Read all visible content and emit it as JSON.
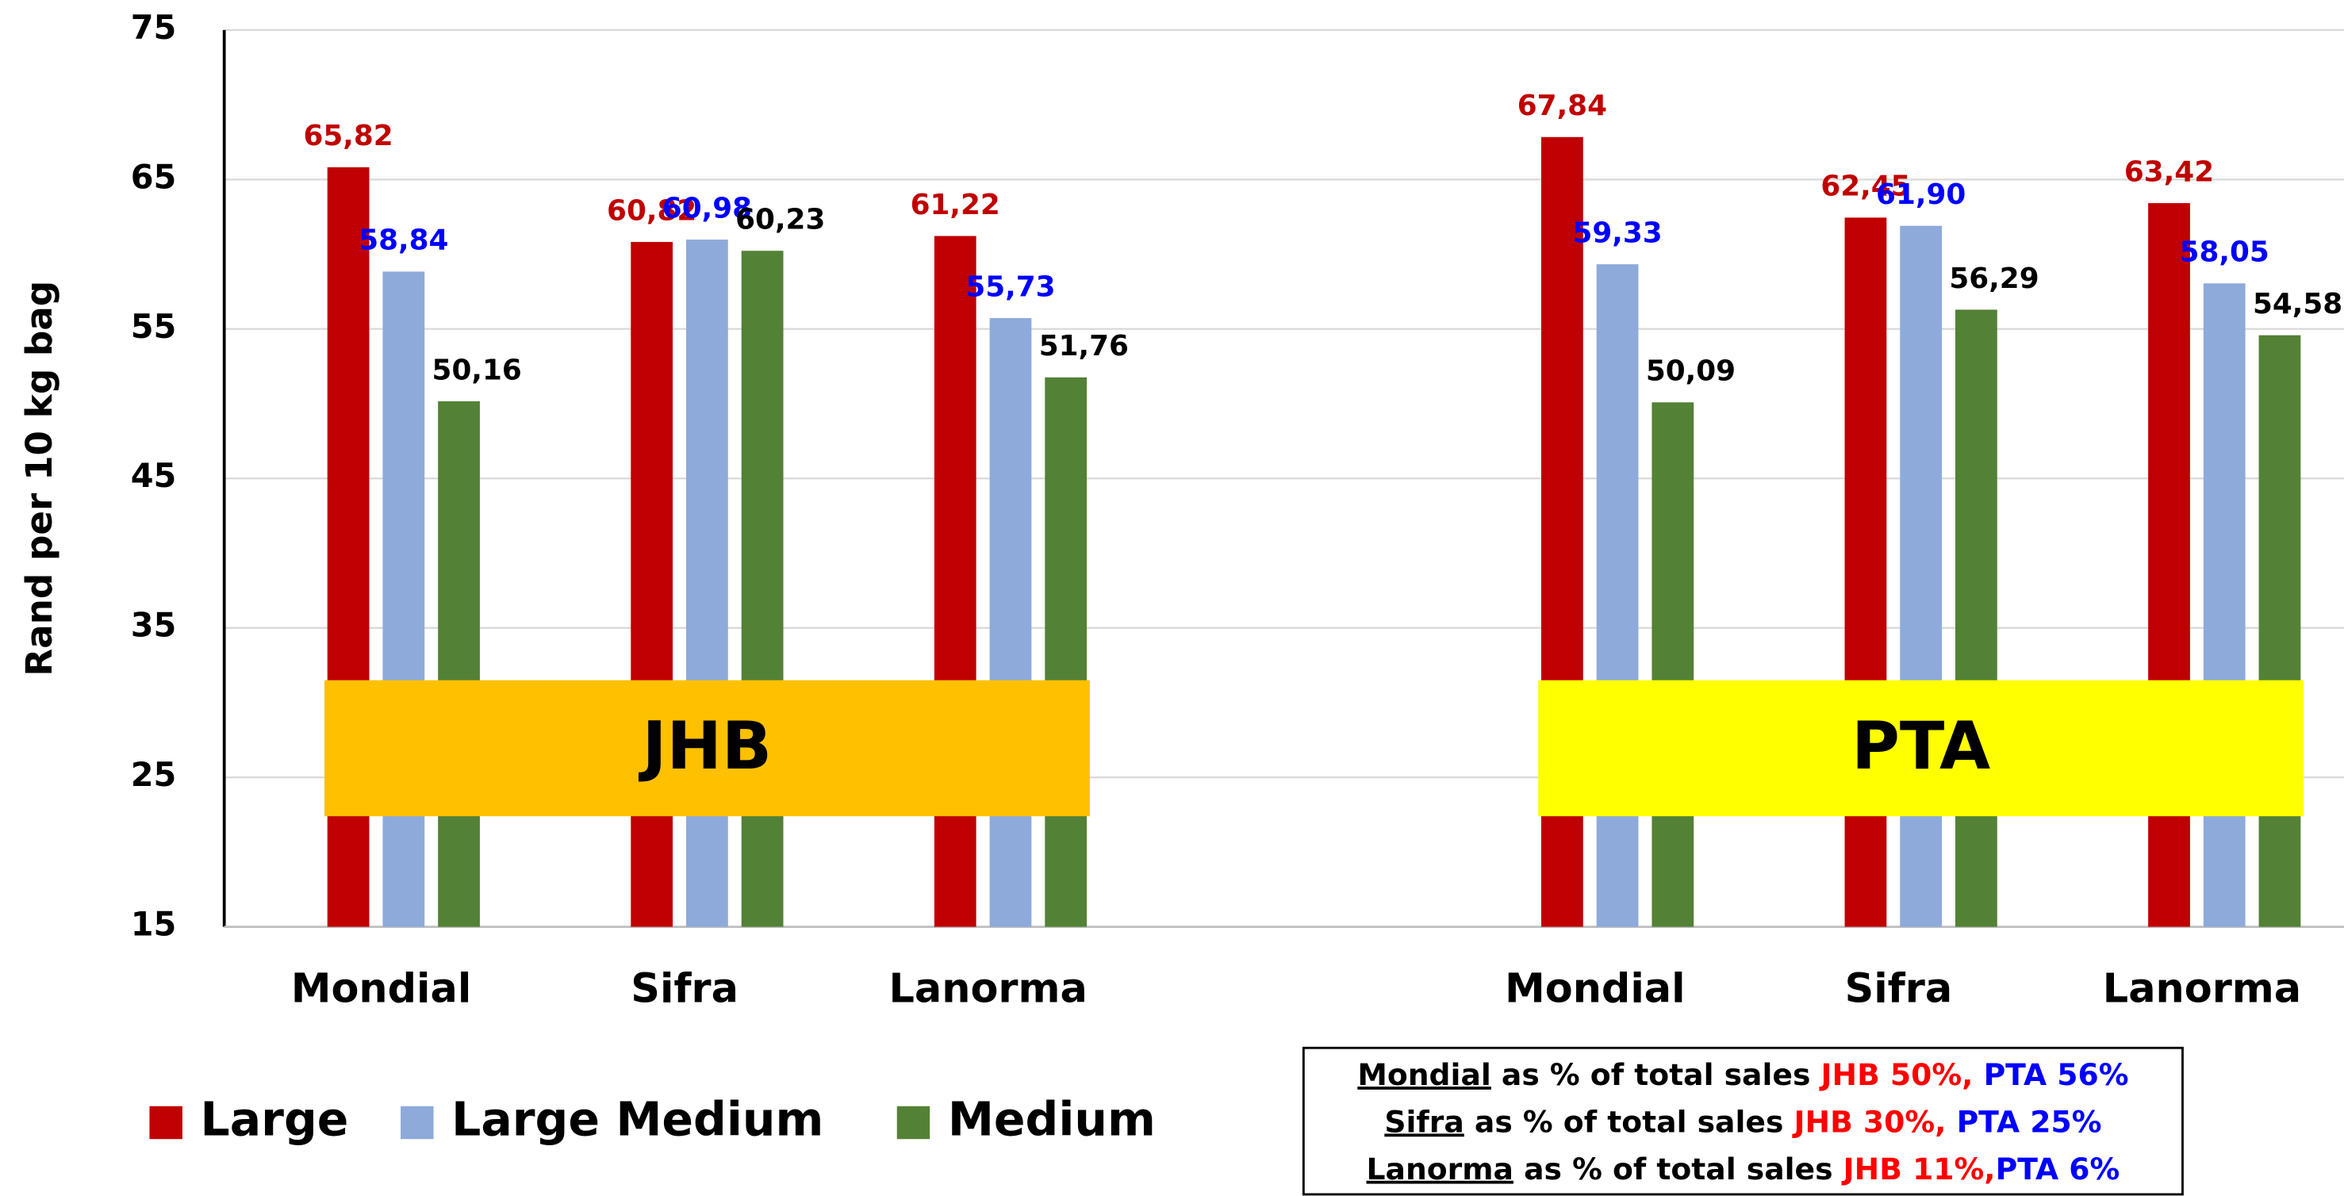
{
  "chart_data": {
    "type": "bar",
    "y_label": "Rand per 10 kg bag",
    "categories": [
      "Mondial",
      "Sifra",
      "Lanorma",
      null,
      "Mondial",
      "Sifra",
      "Lanorma"
    ],
    "series": [
      {
        "name": "Large",
        "color": "#C00000",
        "label_color": "#C00000",
        "values": [
          65.82,
          60.82,
          61.22,
          null,
          67.84,
          62.45,
          63.42
        ],
        "value_labels": [
          "65,82",
          "60,82",
          "61,22",
          null,
          "67,84",
          "62,45",
          "63,42"
        ]
      },
      {
        "name": "Large Medium",
        "color": "#8EAADB",
        "label_color": "#0000FF",
        "values": [
          58.84,
          60.98,
          55.73,
          null,
          59.33,
          61.9,
          58.05
        ],
        "value_labels": [
          "58,84",
          "60,98",
          "55,73",
          null,
          "59,33",
          "61,90",
          "58,05"
        ]
      },
      {
        "name": "Medium",
        "color": "#538135",
        "label_color": "#000000",
        "values": [
          50.16,
          60.23,
          51.76,
          null,
          50.09,
          56.29,
          54.58
        ],
        "value_labels": [
          "50,16",
          "60,23",
          "51,76",
          null,
          "50,09",
          "56,29",
          "54,58"
        ]
      }
    ],
    "ylim": [
      15,
      75
    ],
    "yticks": [
      15,
      25,
      35,
      45,
      55,
      65,
      75
    ],
    "grid": true,
    "legend": "bottom-left",
    "groups": [
      {
        "label": "JHB",
        "color": "#FFC000"
      },
      {
        "label": "PTA",
        "color": "#FFFF00"
      }
    ],
    "notes": [
      [
        {
          "text": "Mondial",
          "color": "#000000",
          "underline": true
        },
        {
          "text": " as % of total sales ",
          "color": "#000000"
        },
        {
          "text": "JHB 50%, ",
          "color": "#FF0000"
        },
        {
          "text": "PTA 56%",
          "color": "#0000FF"
        }
      ],
      [
        {
          "text": "Sifra",
          "color": "#000000",
          "underline": true
        },
        {
          "text": " as % of total sales ",
          "color": "#000000"
        },
        {
          "text": "JHB 30%, ",
          "color": "#FF0000"
        },
        {
          "text": "PTA 25%",
          "color": "#0000FF"
        }
      ],
      [
        {
          "text": "Lanorma",
          "color": "#000000",
          "underline": true
        },
        {
          "text": " as % of total sales ",
          "color": "#000000"
        },
        {
          "text": "JHB 11%,",
          "color": "#FF0000"
        },
        {
          "text": "PTA 6%",
          "color": "#0000FF"
        }
      ]
    ]
  }
}
